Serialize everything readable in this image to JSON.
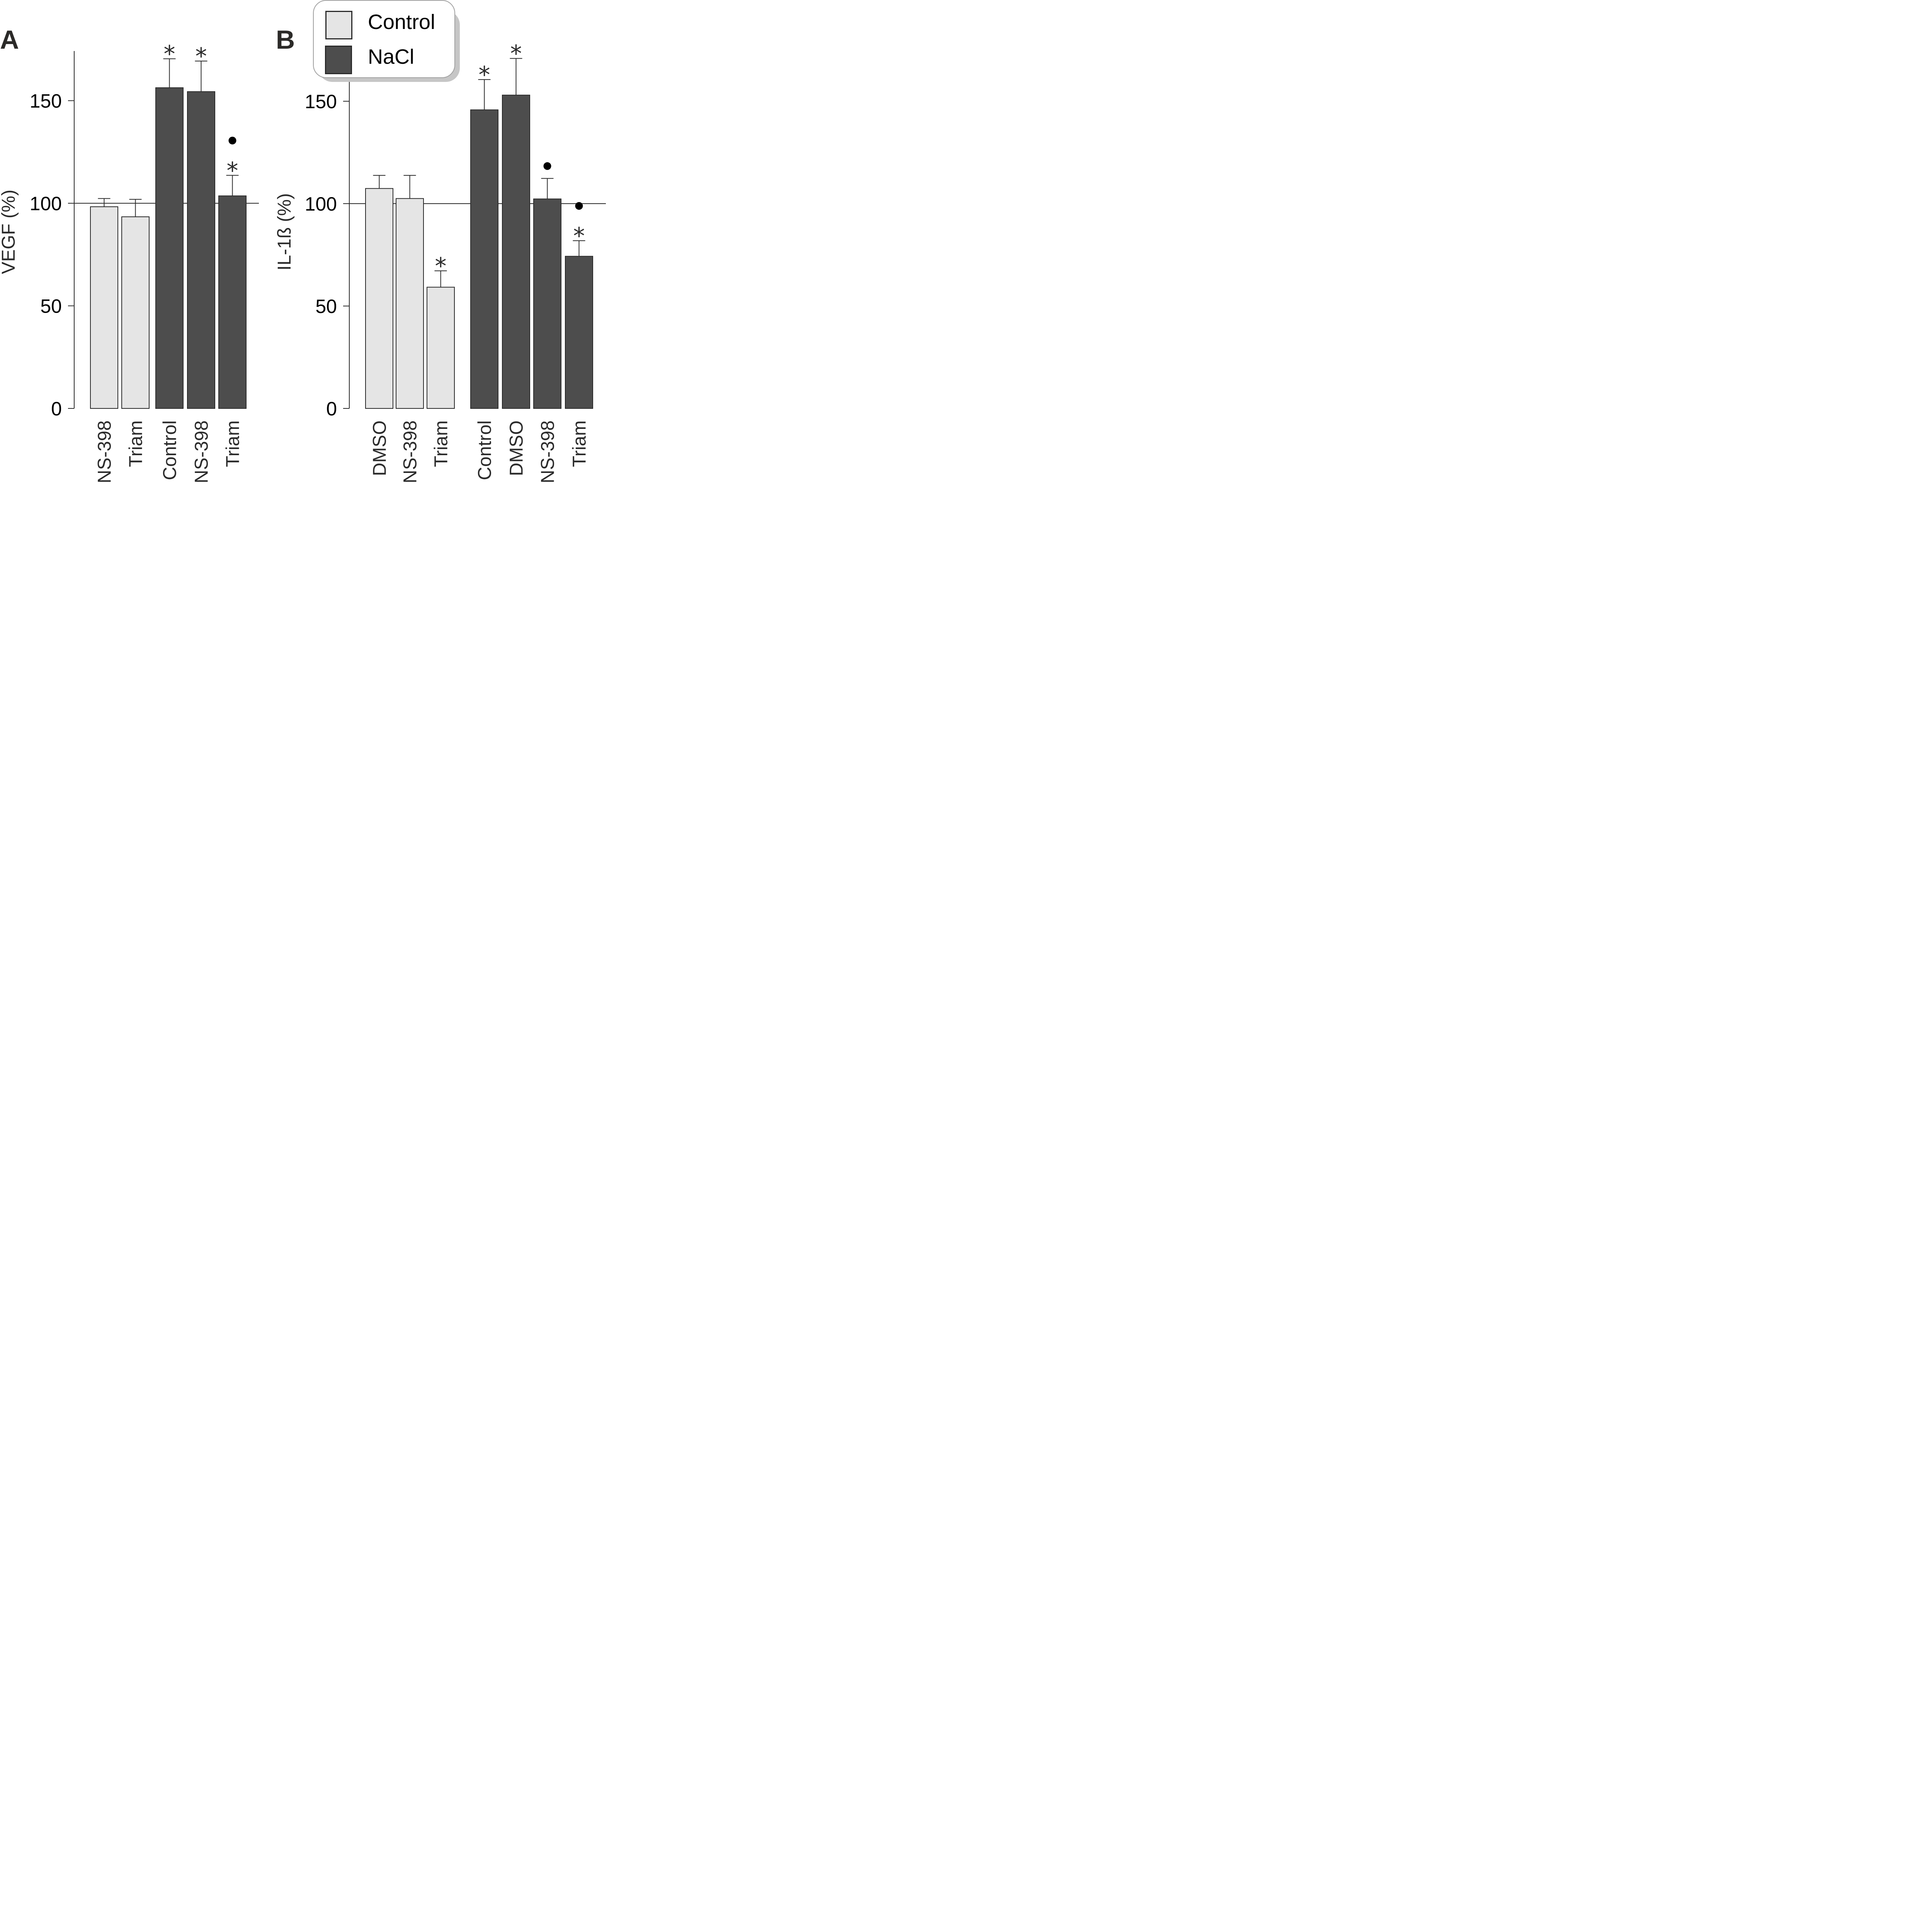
{
  "colors": {
    "control": "#e5e5e5",
    "nacl": "#4d4d4d",
    "stroke": "#2b2b2b"
  },
  "legend": {
    "items": [
      {
        "label": "Control",
        "color": "#e5e5e5"
      },
      {
        "label": "NaCl",
        "color": "#4d4d4d"
      }
    ]
  },
  "chart_data": [
    {
      "type": "bar",
      "panel": "A",
      "ylabel": "VEGF (%)",
      "ylim": [
        0,
        170
      ],
      "yticks": [
        0,
        50,
        100,
        150
      ],
      "reference_line": 100,
      "categories": [
        "NS-398",
        "Triam",
        "Control",
        "NS-398",
        "Triam"
      ],
      "groups": [
        "Control",
        "Control",
        "NaCl",
        "NaCl",
        "NaCl"
      ],
      "values": [
        98.3,
        93.4,
        156.3,
        154.4,
        103.6
      ],
      "errors": [
        4.0,
        8.5,
        14.1,
        14.9,
        10.0
      ],
      "markers": [
        [],
        [],
        [
          "*"
        ],
        [
          "*"
        ],
        [
          "*",
          "•"
        ]
      ]
    },
    {
      "type": "bar",
      "panel": "B",
      "ylabel": "IL-1ß (%)",
      "ylim": [
        0,
        170
      ],
      "yticks": [
        0,
        50,
        100,
        150
      ],
      "reference_line": 100,
      "categories": [
        "DMSO",
        "NS-398",
        "Triam",
        "Control",
        "DMSO",
        "NS-398",
        "Triam"
      ],
      "groups": [
        "Control",
        "Control",
        "Control",
        "NaCl",
        "NaCl",
        "NaCl",
        "NaCl"
      ],
      "values": [
        107.4,
        102.5,
        59.2,
        145.8,
        153.0,
        102.3,
        74.3
      ],
      "errors": [
        6.4,
        11.3,
        8.0,
        14.8,
        17.9,
        10.0,
        7.6
      ],
      "markers": [
        [],
        [],
        [
          "*"
        ],
        [
          "*"
        ],
        [
          "*"
        ],
        [
          "•"
        ],
        [
          "*",
          "•"
        ]
      ]
    }
  ]
}
